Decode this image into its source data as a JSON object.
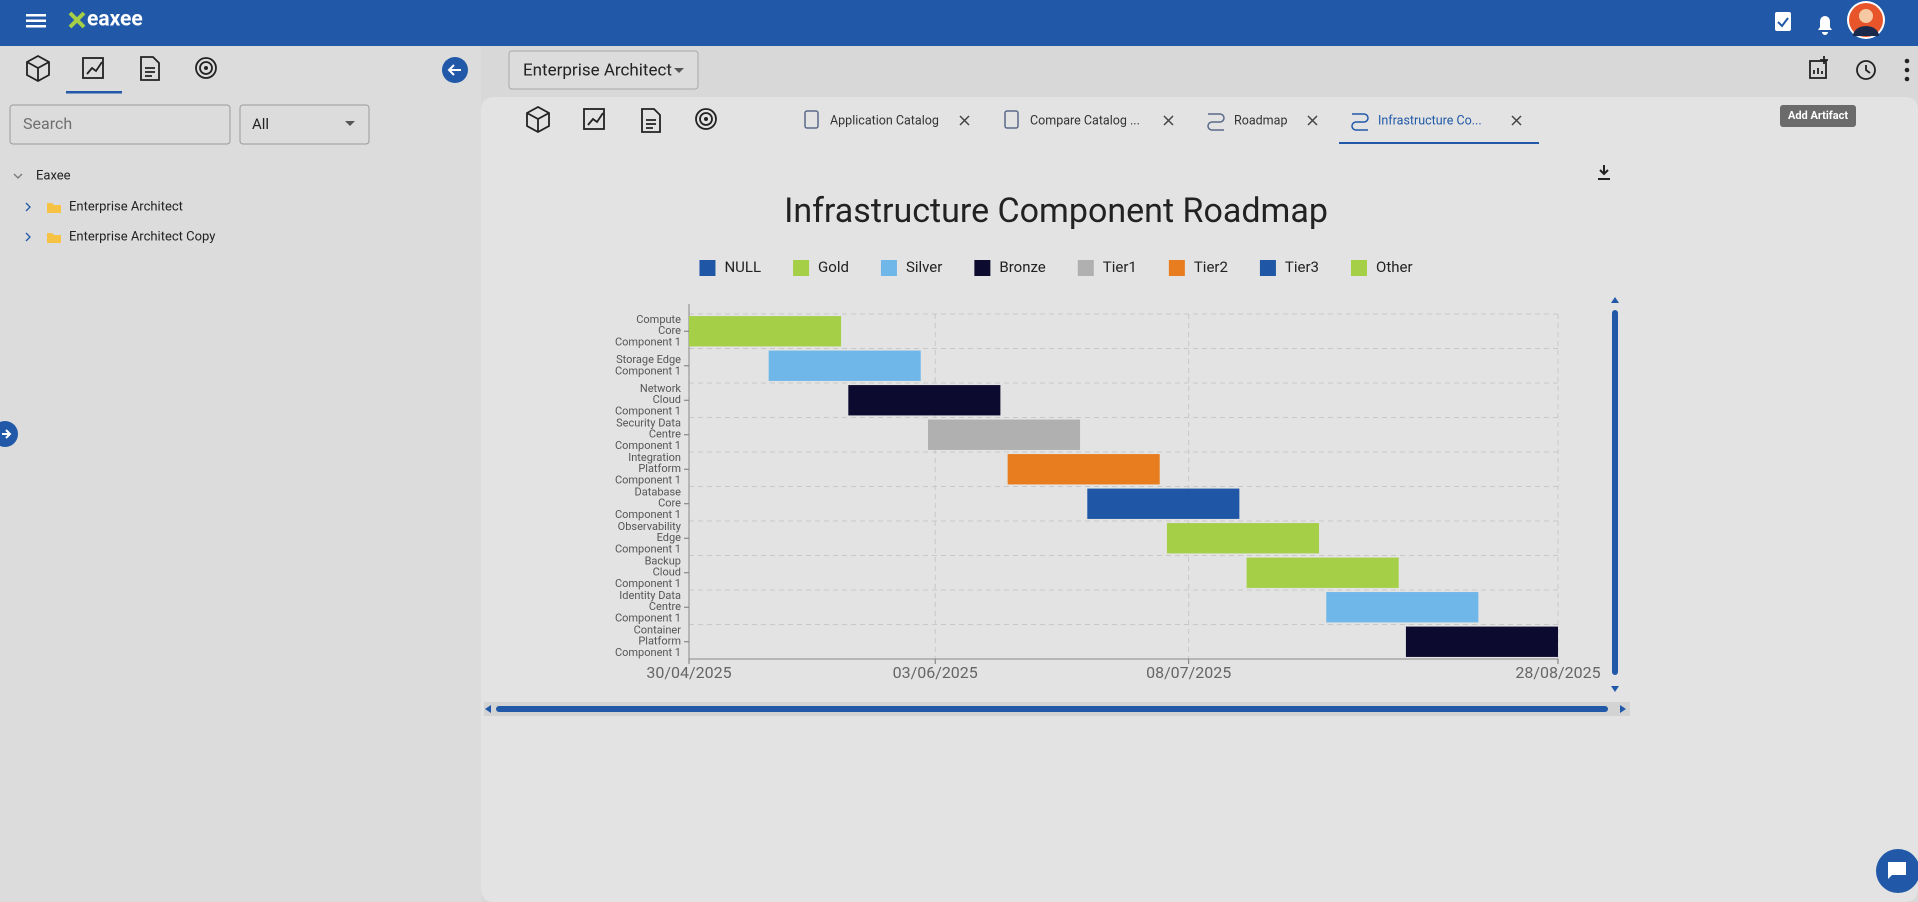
{
  "header": {
    "brand": "eaxee"
  },
  "sidebar": {
    "search_placeholder": "Search",
    "filter": "All",
    "tree": [
      "Eaxee",
      "Enterprise Architect",
      "Enterprise Architect Copy"
    ]
  },
  "workspace": {
    "selector": "Enterprise Architect",
    "tooltip": "Add Artifact",
    "tabs": [
      "Application Catalog",
      "Compare Catalog ...",
      "Roadmap",
      "Infrastructure Co..."
    ]
  },
  "chart_data": {
    "type": "gantt",
    "title": "Infrastructure Component Roadmap",
    "legend": [
      {
        "name": "NULL",
        "color": "#1f56a5"
      },
      {
        "name": "Gold",
        "color": "#a5cf46"
      },
      {
        "name": "Silver",
        "color": "#6fb6e9"
      },
      {
        "name": "Bronze",
        "color": "#0d0a2f"
      },
      {
        "name": "Tier1",
        "color": "#b0b0b0"
      },
      {
        "name": "Tier2",
        "color": "#e87d20"
      },
      {
        "name": "Tier3",
        "color": "#1f56a5"
      },
      {
        "name": "Other",
        "color": "#a5cf46"
      }
    ],
    "categories": [
      [
        "Compute",
        "Core",
        "Component 1"
      ],
      [
        "Storage Edge",
        "Component 1"
      ],
      [
        "Network",
        "Cloud",
        "Component 1"
      ],
      [
        "Security Data",
        "Centre",
        "Component 1"
      ],
      [
        "Integration",
        "Platform",
        "Component 1"
      ],
      [
        "Database",
        "Core",
        "Component 1"
      ],
      [
        "Observability",
        "Edge",
        "Component 1"
      ],
      [
        "Backup",
        "Cloud",
        "Component 1"
      ],
      [
        "Identity Data",
        "Centre",
        "Component 1"
      ],
      [
        "Container",
        "Platform",
        "Component 1"
      ]
    ],
    "start": [
      "2025-04-30",
      "2025-05-11",
      "2025-05-22",
      "2025-06-02",
      "2025-06-13",
      "2025-06-24",
      "2025-07-05",
      "2025-07-16",
      "2025-07-27",
      "2025-08-07"
    ],
    "end": [
      "2025-05-21",
      "2025-06-01",
      "2025-06-12",
      "2025-06-23",
      "2025-07-04",
      "2025-07-15",
      "2025-07-26",
      "2025-08-06",
      "2025-08-17",
      "2025-08-28"
    ],
    "colors": [
      "#a5cf46",
      "#6fb6e9",
      "#0d0a2f",
      "#b0b0b0",
      "#e87d20",
      "#1f56a5",
      "#a5cf46",
      "#a5cf46",
      "#6fb6e9",
      "#0d0a2f"
    ],
    "xlim": [
      "2025-04-30",
      "2025-08-28"
    ],
    "xticks": [
      {
        "value": "2025-04-30",
        "label": "30/04/2025"
      },
      {
        "value": "2025-06-03",
        "label": "03/06/2025"
      },
      {
        "value": "2025-07-08",
        "label": "08/07/2025"
      },
      {
        "value": "2025-08-28",
        "label": "28/08/2025"
      }
    ],
    "grid": true
  }
}
